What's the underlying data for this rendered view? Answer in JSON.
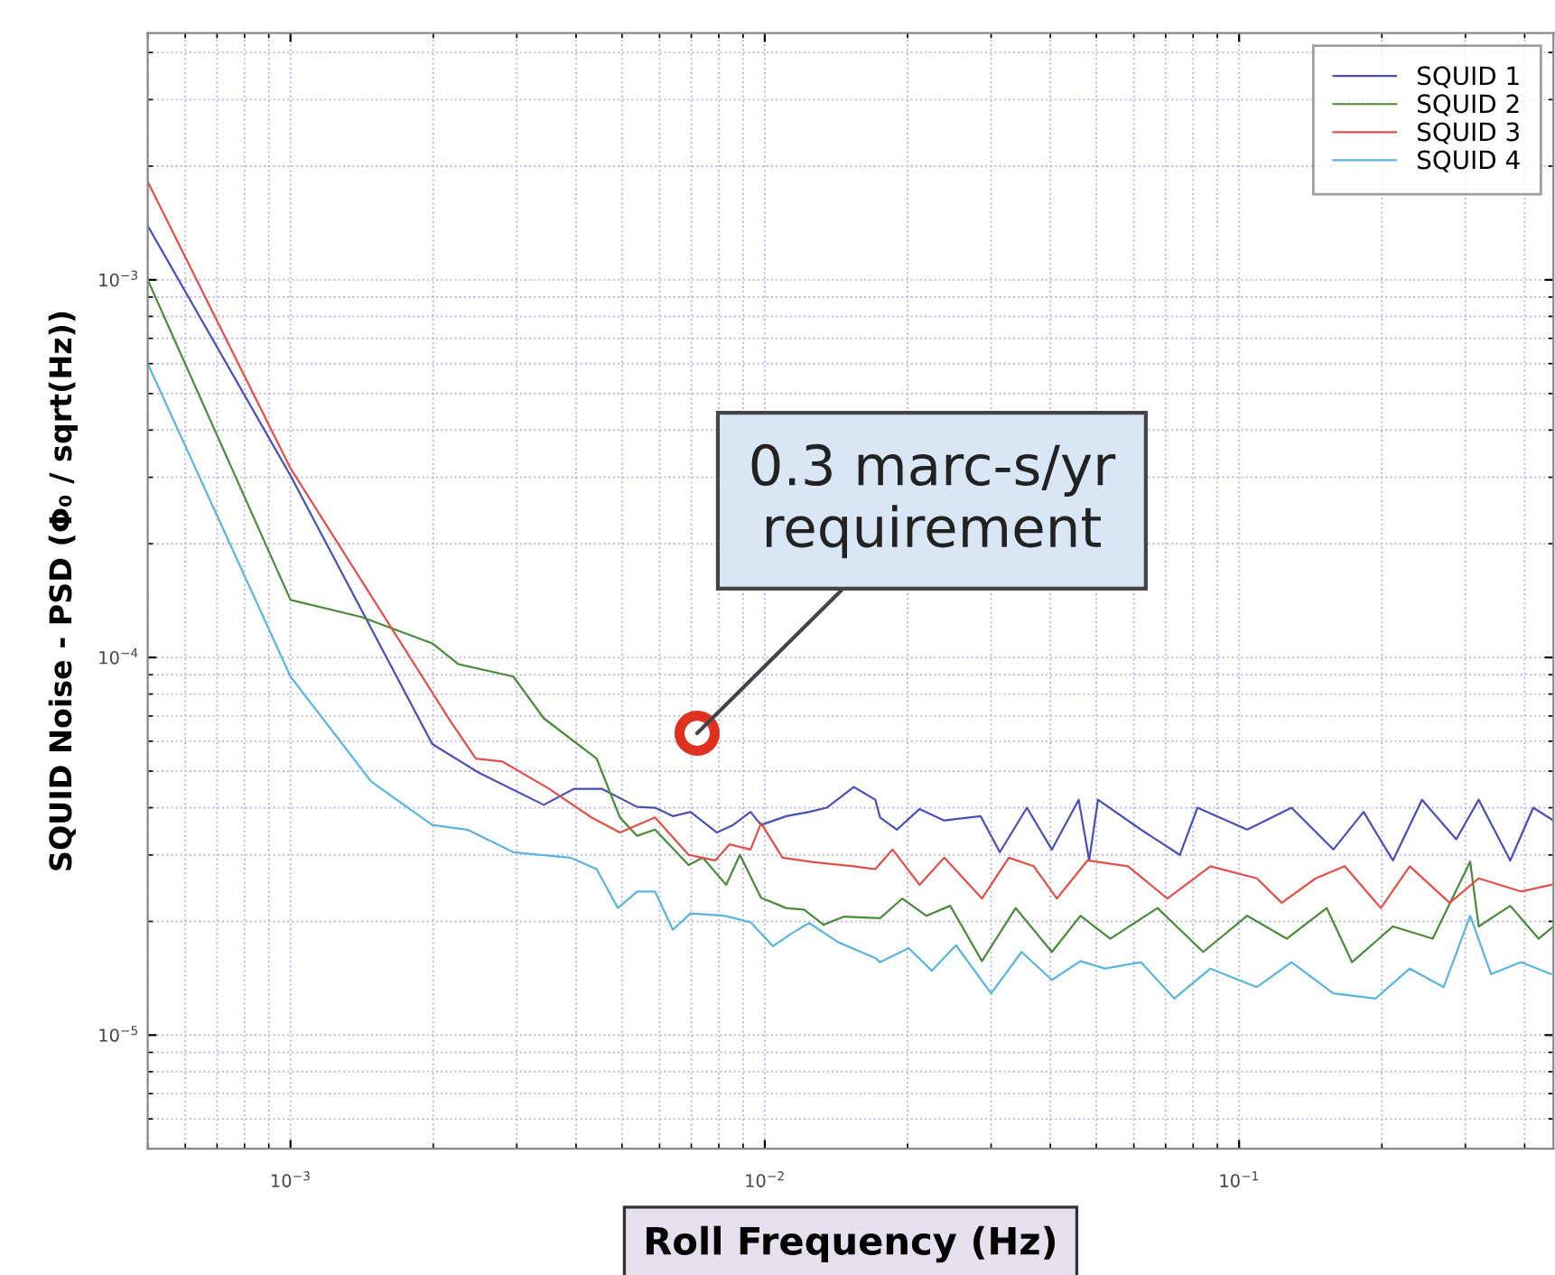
{
  "chart_data": {
    "type": "line",
    "xlabel": "Roll Frequency (Hz)",
    "ylabel": "SQUID Noise - PSD (Φ₀ / sqrt(Hz))",
    "log": "xy",
    "grid": true,
    "legend": "top right",
    "line_style": "solid",
    "marker": "none",
    "xlim": [
      0.0005,
      0.46
    ],
    "ylim": [
      5e-06,
      0.0045
    ],
    "xticks": [
      {
        "value": 0.001,
        "label": "10$^{−3}$"
      },
      {
        "value": 0.01,
        "label": "10$^{−2}$"
      },
      {
        "value": 0.1,
        "label": "10$^{−1}$"
      }
    ],
    "yticks": [
      {
        "value": 1e-05,
        "label": "10$^{−5}$"
      },
      {
        "value": 0.0001,
        "label": "10$^{−4}$"
      },
      {
        "value": 0.001,
        "label": "10$^{−3}$"
      }
    ],
    "annotations": [
      {
        "text": "0.3 marc-s/yr\nrequirement",
        "x": 0.0072,
        "y": 6.3e-05
      }
    ],
    "series": [
      {
        "name": "SQUID 1",
        "color": "#4a4fb5",
        "x": [
          0.0005,
          0.001,
          0.00199,
          0.00249,
          0.00342,
          0.00396,
          0.00453,
          0.00538,
          0.00587,
          0.0064,
          0.00697,
          0.00792,
          0.00857,
          0.00933,
          0.00982,
          0.0111,
          0.0124,
          0.0135,
          0.0154,
          0.0171,
          0.0175,
          0.019,
          0.0212,
          0.0239,
          0.0285,
          0.0313,
          0.0357,
          0.0403,
          0.0459,
          0.0483,
          0.0504,
          0.0621,
          0.075,
          0.0817,
          0.104,
          0.129,
          0.158,
          0.183,
          0.211,
          0.243,
          0.287,
          0.32,
          0.373,
          0.417,
          0.46
        ],
        "values": [
          0.00139,
          0.000303,
          5.9e-05,
          4.96e-05,
          4.07e-05,
          4.49e-05,
          4.49e-05,
          4.02e-05,
          4e-05,
          3.8e-05,
          3.9e-05,
          3.44e-05,
          3.6e-05,
          3.9e-05,
          3.6e-05,
          3.8e-05,
          3.9e-05,
          4e-05,
          4.54e-05,
          4.2e-05,
          3.77e-05,
          3.5e-05,
          3.97e-05,
          3.7e-05,
          3.8e-05,
          3.05e-05,
          4e-05,
          3.1e-05,
          4.2e-05,
          2.9e-05,
          4.2e-05,
          3.5e-05,
          3e-05,
          4e-05,
          3.5e-05,
          4e-05,
          3.1e-05,
          3.9e-05,
          2.9e-05,
          4.2e-05,
          3.3e-05,
          4.2e-05,
          2.9e-05,
          4e-05,
          3.7e-05
        ]
      },
      {
        "name": "SQUID 2",
        "color": "#4a8a3a",
        "x": [
          0.0005,
          0.001,
          0.00141,
          0.00199,
          0.00226,
          0.00295,
          0.00342,
          0.00442,
          0.00495,
          0.00538,
          0.00587,
          0.00691,
          0.0074,
          0.00829,
          0.00886,
          0.00982,
          0.0111,
          0.0121,
          0.0133,
          0.0147,
          0.0175,
          0.0195,
          0.0219,
          0.0246,
          0.0287,
          0.0338,
          0.0403,
          0.0463,
          0.0535,
          0.0673,
          0.084,
          0.104,
          0.126,
          0.153,
          0.173,
          0.211,
          0.256,
          0.307,
          0.32,
          0.373,
          0.428,
          0.46
        ],
        "values": [
          0.001,
          0.000142,
          0.000128,
          0.000109,
          9.6e-05,
          8.9e-05,
          6.9e-05,
          5.4e-05,
          3.77e-05,
          3.37e-05,
          3.5e-05,
          2.82e-05,
          2.95e-05,
          2.5e-05,
          3e-05,
          2.31e-05,
          2.17e-05,
          2.15e-05,
          1.96e-05,
          2.06e-05,
          2.04e-05,
          2.3e-05,
          2.07e-05,
          2.2e-05,
          1.57e-05,
          2.17e-05,
          1.66e-05,
          2.07e-05,
          1.8e-05,
          2.17e-05,
          1.66e-05,
          2.07e-05,
          1.8e-05,
          2.17e-05,
          1.56e-05,
          1.94e-05,
          1.8e-05,
          2.88e-05,
          1.94e-05,
          2.2e-05,
          1.8e-05,
          1.94e-05
        ]
      },
      {
        "name": "SQUID 3",
        "color": "#e0504a",
        "x": [
          0.0005,
          0.001,
          0.00217,
          0.00246,
          0.0028,
          0.0035,
          0.00431,
          0.00495,
          0.00587,
          0.00691,
          0.00786,
          0.00843,
          0.00933,
          0.00982,
          0.0109,
          0.0127,
          0.0154,
          0.0171,
          0.0186,
          0.0212,
          0.0239,
          0.0287,
          0.0327,
          0.0369,
          0.0413,
          0.0479,
          0.0583,
          0.0706,
          0.087,
          0.109,
          0.123,
          0.145,
          0.167,
          0.199,
          0.229,
          0.278,
          0.32,
          0.393,
          0.455
        ],
        "values": [
          0.00182,
          0.000317,
          6.8e-05,
          5.4e-05,
          5.3e-05,
          4.5e-05,
          3.77e-05,
          3.44e-05,
          3.77e-05,
          3e-05,
          2.9e-05,
          3.2e-05,
          3.1e-05,
          3.64e-05,
          2.95e-05,
          2.87e-05,
          2.8e-05,
          2.75e-05,
          3.1e-05,
          2.5e-05,
          2.95e-05,
          2.3e-05,
          2.95e-05,
          2.8e-05,
          2.3e-05,
          2.9e-05,
          2.8e-05,
          2.3e-05,
          2.8e-05,
          2.6e-05,
          2.24e-05,
          2.6e-05,
          2.8e-05,
          2.17e-05,
          2.8e-05,
          2.24e-05,
          2.6e-05,
          2.4e-05,
          2.5e-05
        ]
      },
      {
        "name": "SQUID 4",
        "color": "#5ab4dc",
        "x": [
          0.0005,
          0.001,
          0.00148,
          0.00199,
          0.00236,
          0.00295,
          0.00389,
          0.00442,
          0.0049,
          0.00538,
          0.00587,
          0.0064,
          0.00697,
          0.00822,
          0.00933,
          0.0104,
          0.0114,
          0.0124,
          0.0143,
          0.0171,
          0.0175,
          0.0201,
          0.0225,
          0.0253,
          0.03,
          0.0348,
          0.0403,
          0.0463,
          0.0521,
          0.0621,
          0.073,
          0.087,
          0.109,
          0.129,
          0.158,
          0.194,
          0.229,
          0.27,
          0.307,
          0.34,
          0.393,
          0.455
        ],
        "values": [
          0.0006,
          8.9e-05,
          4.69e-05,
          3.6e-05,
          3.5e-05,
          3.05e-05,
          2.95e-05,
          2.75e-05,
          2.17e-05,
          2.4e-05,
          2.4e-05,
          1.9e-05,
          2.1e-05,
          2.07e-05,
          1.99e-05,
          1.72e-05,
          1.86e-05,
          1.98e-05,
          1.76e-05,
          1.6e-05,
          1.56e-05,
          1.7e-05,
          1.48e-05,
          1.73e-05,
          1.29e-05,
          1.66e-05,
          1.4e-05,
          1.57e-05,
          1.5e-05,
          1.56e-05,
          1.25e-05,
          1.5e-05,
          1.34e-05,
          1.56e-05,
          1.29e-05,
          1.25e-05,
          1.5e-05,
          1.34e-05,
          2.07e-05,
          1.45e-05,
          1.56e-05,
          1.45e-05
        ]
      }
    ]
  }
}
